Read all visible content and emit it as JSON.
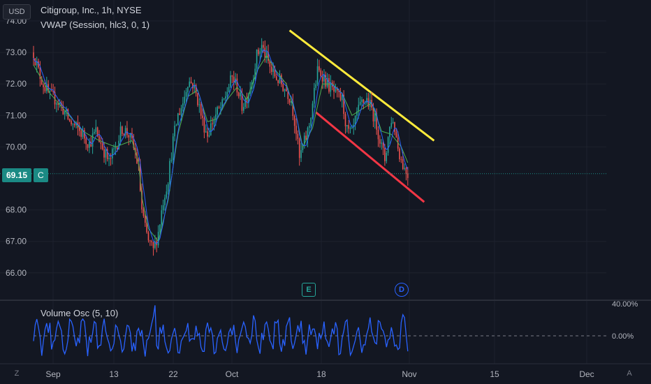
{
  "header": {
    "currency": "USD",
    "title": "Citigroup, Inc., 1h, NYSE",
    "indicator": "VWAP (Session, hlc3, 0, 1)",
    "last_price": "69.15",
    "last_flag": "C"
  },
  "events": {
    "earnings": "E",
    "dividend": "D"
  },
  "corner": {
    "left": "Z",
    "right": "A"
  },
  "colors": {
    "background": "#131722",
    "up": "#26a69a",
    "down": "#ef5350",
    "vwap": "#4caf50",
    "ma": "#2962ff",
    "resistance": "#ffeb3b",
    "support": "#f23645",
    "osc": "#2962ff",
    "price_line": "#1b8a84"
  },
  "chart_data": [
    {
      "type": "candlestick",
      "title": "Citigroup, Inc., 1h, NYSE",
      "ylim": [
        65.7,
        74.1
      ],
      "yticks": [
        "74.00",
        "73.00",
        "72.00",
        "71.00",
        "70.00",
        "68.00",
        "67.00",
        "66.00"
      ],
      "xticks": [
        "Sep",
        "13",
        "22",
        "Oct",
        "18",
        "Nov",
        "15",
        "Dec"
      ],
      "grid": true,
      "path": [
        [
          0,
          73.0
        ],
        [
          3,
          72.4
        ],
        [
          6,
          72.0
        ],
        [
          10,
          71.6
        ],
        [
          14,
          71.5
        ],
        [
          18,
          71.2
        ],
        [
          22,
          70.8
        ],
        [
          26,
          70.6
        ],
        [
          30,
          70.4
        ],
        [
          34,
          70.1
        ],
        [
          38,
          70.5
        ],
        [
          42,
          70.0
        ],
        [
          46,
          69.5
        ],
        [
          50,
          70.0
        ],
        [
          54,
          70.6
        ],
        [
          58,
          70.4
        ],
        [
          62,
          69.8
        ],
        [
          64,
          69.3
        ],
        [
          66,
          68.0
        ],
        [
          68,
          67.4
        ],
        [
          70,
          67.0
        ],
        [
          73,
          66.7
        ],
        [
          76,
          67.3
        ],
        [
          79,
          68.3
        ],
        [
          82,
          69.0
        ],
        [
          85,
          70.2
        ],
        [
          88,
          71.0
        ],
        [
          91,
          71.4
        ],
        [
          94,
          72.1
        ],
        [
          97,
          72.0
        ],
        [
          100,
          71.5
        ],
        [
          103,
          70.8
        ],
        [
          106,
          70.4
        ],
        [
          109,
          70.8
        ],
        [
          112,
          71.1
        ],
        [
          115,
          71.3
        ],
        [
          118,
          71.8
        ],
        [
          121,
          72.2
        ],
        [
          124,
          71.9
        ],
        [
          127,
          71.3
        ],
        [
          130,
          71.6
        ],
        [
          133,
          72.1
        ],
        [
          136,
          72.9
        ],
        [
          139,
          73.2
        ],
        [
          142,
          72.8
        ],
        [
          145,
          72.4
        ],
        [
          148,
          72.2
        ],
        [
          151,
          72.0
        ],
        [
          154,
          71.8
        ],
        [
          157,
          71.5
        ],
        [
          160,
          70.5
        ],
        [
          162,
          69.6
        ],
        [
          164,
          70.0
        ],
        [
          166,
          70.3
        ],
        [
          168,
          70.7
        ],
        [
          170,
          71.4
        ],
        [
          173,
          72.4
        ],
        [
          176,
          72.3
        ],
        [
          179,
          72.0
        ],
        [
          182,
          71.8
        ],
        [
          185,
          71.6
        ],
        [
          188,
          71.5
        ],
        [
          191,
          70.5
        ],
        [
          194,
          70.4
        ],
        [
          197,
          71.0
        ],
        [
          200,
          71.4
        ],
        [
          203,
          71.5
        ],
        [
          206,
          71.2
        ],
        [
          209,
          70.7
        ],
        [
          212,
          70.0
        ],
        [
          214,
          69.6
        ],
        [
          216,
          70.3
        ],
        [
          218,
          70.9
        ],
        [
          220,
          70.6
        ],
        [
          222,
          70.0
        ],
        [
          224,
          69.6
        ],
        [
          226,
          69.3
        ],
        [
          228,
          69.15
        ]
      ],
      "vwap_path": [
        [
          0,
          72.6
        ],
        [
          10,
          71.7
        ],
        [
          20,
          71.1
        ],
        [
          30,
          70.5
        ],
        [
          40,
          70.2
        ],
        [
          50,
          70.0
        ],
        [
          60,
          70.2
        ],
        [
          64,
          69.5
        ],
        [
          66,
          68.4
        ],
        [
          70,
          67.4
        ],
        [
          76,
          67.0
        ],
        [
          82,
          68.3
        ],
        [
          88,
          70.4
        ],
        [
          94,
          71.6
        ],
        [
          100,
          71.8
        ],
        [
          106,
          70.8
        ],
        [
          112,
          70.9
        ],
        [
          118,
          71.5
        ],
        [
          124,
          71.9
        ],
        [
          130,
          71.5
        ],
        [
          136,
          72.4
        ],
        [
          142,
          72.9
        ],
        [
          148,
          72.4
        ],
        [
          154,
          72.0
        ],
        [
          160,
          71.0
        ],
        [
          164,
          70.0
        ],
        [
          170,
          70.6
        ],
        [
          176,
          72.0
        ],
        [
          182,
          72.0
        ],
        [
          188,
          71.7
        ],
        [
          194,
          71.0
        ],
        [
          200,
          71.2
        ],
        [
          206,
          71.4
        ],
        [
          212,
          70.5
        ],
        [
          218,
          70.4
        ],
        [
          224,
          70.0
        ],
        [
          228,
          69.5
        ]
      ],
      "trendlines": {
        "resistance": {
          "x": [
            156,
            244
          ],
          "y": [
            73.7,
            70.2
          ]
        },
        "support": {
          "x": [
            172,
            238
          ],
          "y": [
            71.1,
            68.25
          ]
        }
      }
    },
    {
      "type": "line",
      "title": "Volume Osc (5, 10)",
      "ylim": [
        -32,
        44
      ],
      "yticks": [
        "40.00%",
        "0.00%"
      ],
      "reference": 0,
      "seed": 7
    }
  ]
}
